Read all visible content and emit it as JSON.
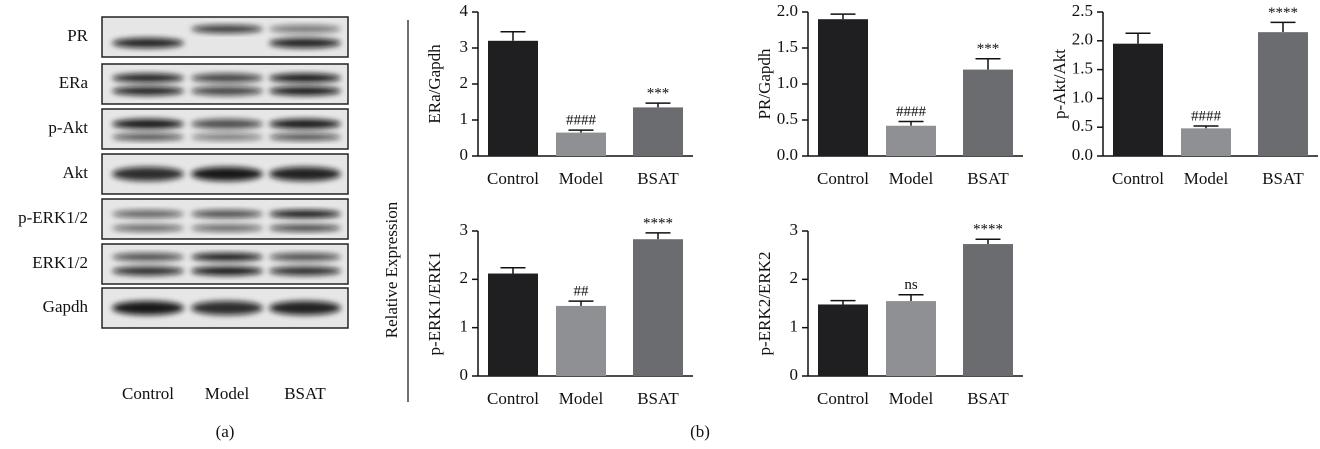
{
  "blot": {
    "rows": [
      "PR",
      "ERa",
      "p-Akt",
      "Akt",
      "p-ERK1/2",
      "ERK1/2",
      "Gapdh"
    ],
    "lanes": [
      "Control",
      "Model",
      "BSAT"
    ],
    "caption": "(a)"
  },
  "panel_b": {
    "y_label": "Relative Expression",
    "caption": "(b)"
  },
  "chart_data": [
    {
      "type": "bar",
      "y_label": "ERa/Gapdh",
      "categories": [
        "Control",
        "Model",
        "BSAT"
      ],
      "values": [
        3.2,
        0.65,
        1.35
      ],
      "errors": [
        0.25,
        0.07,
        0.12
      ],
      "colors": [
        "#1f1f21",
        "#8e9094",
        "#6b6c70"
      ],
      "value_annotations": [
        null,
        "####",
        "***"
      ],
      "ylim": [
        0,
        4
      ],
      "yticks": [
        0,
        1,
        2,
        3,
        4
      ]
    },
    {
      "type": "bar",
      "y_label": "PR/Gapdh",
      "categories": [
        "Control",
        "Model",
        "BSAT"
      ],
      "values": [
        1.9,
        0.42,
        1.2
      ],
      "errors": [
        0.07,
        0.06,
        0.15
      ],
      "colors": [
        "#1f1f21",
        "#8e9094",
        "#6b6c70"
      ],
      "value_annotations": [
        null,
        "####",
        "***"
      ],
      "ylim": [
        0,
        2
      ],
      "yticks": [
        {
          "value": 0,
          "label": "0.0"
        },
        0.5,
        {
          "value": 1,
          "label": "1.0"
        },
        1.5,
        {
          "value": 2,
          "label": "2.0"
        }
      ]
    },
    {
      "type": "bar",
      "y_label": "p-Akt/Akt",
      "categories": [
        "Control",
        "Model",
        "BSAT"
      ],
      "values": [
        1.95,
        0.48,
        2.15
      ],
      "errors": [
        0.18,
        0.04,
        0.17
      ],
      "colors": [
        "#1f1f21",
        "#8e9094",
        "#6b6c70"
      ],
      "value_annotations": [
        null,
        "####",
        "****"
      ],
      "ylim": [
        0,
        2.5
      ],
      "yticks": [
        {
          "value": 0,
          "label": "0.0"
        },
        0.5,
        {
          "value": 1,
          "label": "1.0"
        },
        1.5,
        {
          "value": 2,
          "label": "2.0"
        },
        2.5
      ]
    },
    {
      "type": "bar",
      "y_label": "p-ERK1/ERK1",
      "categories": [
        "Control",
        "Model",
        "BSAT"
      ],
      "values": [
        2.12,
        1.45,
        2.83
      ],
      "errors": [
        0.12,
        0.1,
        0.13
      ],
      "colors": [
        "#1f1f21",
        "#8e9094",
        "#6b6c70"
      ],
      "value_annotations": [
        null,
        "##",
        "****"
      ],
      "ylim": [
        0,
        3
      ],
      "yticks": [
        0,
        1,
        2,
        3
      ]
    },
    {
      "type": "bar",
      "y_label": "p-ERK2/ERK2",
      "categories": [
        "Control",
        "Model",
        "BSAT"
      ],
      "values": [
        1.48,
        1.55,
        2.73
      ],
      "errors": [
        0.08,
        0.13,
        0.1
      ],
      "colors": [
        "#1f1f21",
        "#8e9094",
        "#6b6c70"
      ],
      "value_annotations": [
        null,
        "ns",
        "****"
      ],
      "ylim": [
        0,
        3
      ],
      "yticks": [
        0,
        1,
        2,
        3
      ]
    }
  ]
}
